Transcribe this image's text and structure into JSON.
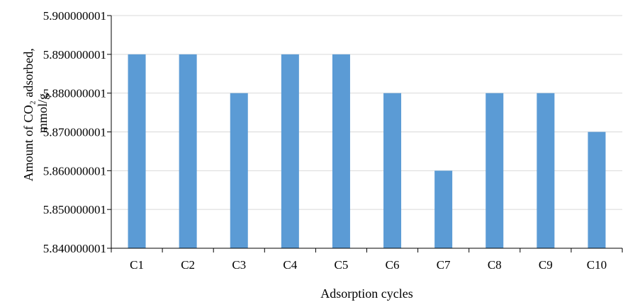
{
  "chart_data": {
    "type": "bar",
    "title": "",
    "xlabel": "Adsorption cycles",
    "ylabel_lines": [
      "Amount of CO₂ adsorbed,",
      "mmol/g"
    ],
    "categories": [
      "C1",
      "C2",
      "C3",
      "C4",
      "C5",
      "C6",
      "C7",
      "C8",
      "C9",
      "C10"
    ],
    "values": [
      5.89,
      5.89,
      5.88,
      5.89,
      5.89,
      5.88,
      5.86,
      5.88,
      5.88,
      5.87
    ],
    "ylim": [
      5.840000001,
      5.900000001
    ],
    "yticks": [
      5.840000001,
      5.850000001,
      5.860000001,
      5.870000001,
      5.880000001,
      5.890000001,
      5.900000001
    ],
    "ytick_labels": [
      "5.840000001",
      "5.850000001",
      "5.860000001",
      "5.870000001",
      "5.880000001",
      "5.890000001",
      "5.900000001"
    ],
    "grid": true,
    "legend": "none",
    "colors": {
      "bar": "#5b9bd5",
      "grid": "#d9d9d9",
      "axis": "#000000"
    }
  }
}
